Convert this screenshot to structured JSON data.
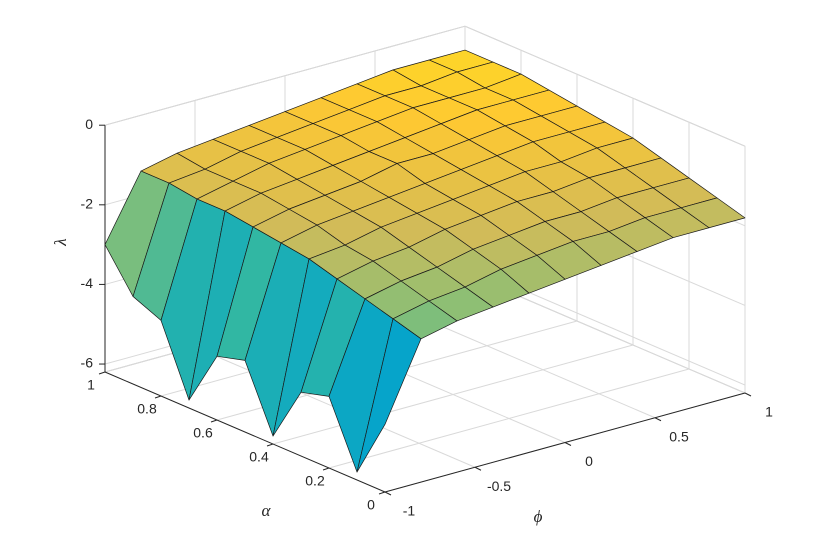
{
  "chart_data": {
    "type": "surface",
    "xlabel": "ϕ",
    "ylabel": "α",
    "zlabel": "λ",
    "x": [
      -1,
      -0.8,
      -0.6,
      -0.4,
      -0.2,
      0,
      0.2,
      0.4,
      0.6,
      0.8,
      1
    ],
    "y": [
      0,
      0.1,
      0.2,
      0.3,
      0.4,
      0.5,
      0.6,
      0.7,
      0.8,
      0.9,
      1
    ],
    "z": [
      [
        -4.5,
        -2.6,
        -2.4,
        -2.3,
        -2.2,
        -2.1,
        -2.0,
        -1.9,
        -1.8,
        -1.8,
        -1.8
      ],
      [
        -6.0,
        -2.4,
        -2.2,
        -2.1,
        -1.9,
        -1.8,
        -1.7,
        -1.7,
        -1.6,
        -1.6,
        -1.6
      ],
      [
        -4.4,
        -2.2,
        -2.0,
        -1.9,
        -1.7,
        -1.6,
        -1.5,
        -1.5,
        -1.4,
        -1.4,
        -1.4
      ],
      [
        -4.6,
        -2.0,
        -1.8,
        -1.7,
        -1.5,
        -1.4,
        -1.3,
        -1.3,
        -1.2,
        -1.2,
        -1.2
      ],
      [
        -6.0,
        -1.8,
        -1.7,
        -1.5,
        -1.4,
        -1.3,
        -1.2,
        -1.1,
        -1.1,
        -1.0,
        -1.0
      ],
      [
        -4.4,
        -1.7,
        -1.5,
        -1.4,
        -1.3,
        -1.2,
        -1.1,
        -1.0,
        -0.9,
        -0.9,
        -0.9
      ],
      [
        -4.6,
        -1.6,
        -1.4,
        -1.3,
        -1.2,
        -1.0,
        -1.0,
        -0.9,
        -0.8,
        -0.8,
        -0.8
      ],
      [
        -6.0,
        -1.5,
        -1.3,
        -1.2,
        -1.1,
        -1.0,
        -0.9,
        -0.8,
        -0.7,
        -0.7,
        -0.7
      ],
      [
        -4.3,
        -1.5,
        -1.3,
        -1.1,
        -1.0,
        -0.9,
        -0.8,
        -0.7,
        -0.7,
        -0.7,
        -0.6
      ],
      [
        -4.0,
        -1.4,
        -1.3,
        -1.1,
        -1.0,
        -0.9,
        -0.8,
        -0.7,
        -0.7,
        -0.6,
        -0.6
      ],
      [
        -3.0,
        -1.4,
        -1.2,
        -1.1,
        -1.0,
        -0.9,
        -0.8,
        -0.7,
        -0.6,
        -0.6,
        -0.6
      ]
    ],
    "xlim": [
      -1,
      1
    ],
    "ylim": [
      0,
      1
    ],
    "zlim": [
      -6.2,
      0
    ],
    "xticks": [
      -1,
      -0.5,
      0,
      0.5,
      1
    ],
    "yticks": [
      0,
      0.2,
      0.4,
      0.6,
      0.8,
      1
    ],
    "zticks": [
      -6,
      -4,
      -2,
      0
    ],
    "grid": true,
    "colormap": [
      "#352a87",
      "#0f5cdd",
      "#1481d6",
      "#06a4ca",
      "#2eb7a4",
      "#87bf77",
      "#d1bb59",
      "#fec832",
      "#f9fb0e"
    ]
  }
}
